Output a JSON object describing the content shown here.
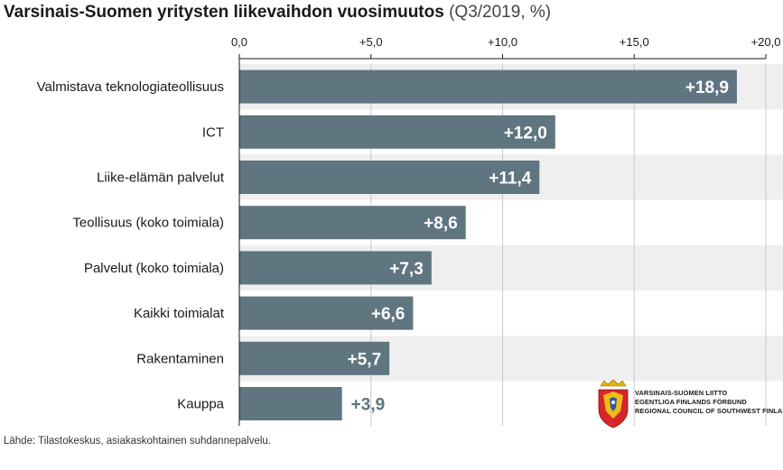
{
  "title": "Varsinais-Suomen yritysten liikevaihdon vuosimuutos",
  "subtitle": "(Q3/2019, %)",
  "source": "Lähde: Tilastokeskus, asiakaskohtainen suhdannepalvelu.",
  "logo": {
    "lines": [
      "VARSINAIS-SUOMEN LIITTO",
      "EGENTLIGA FINLANDS FÖRBUND",
      "REGIONAL COUNCIL OF SOUTHWEST FINLAND"
    ]
  },
  "colors": {
    "bar": "#5f7580",
    "value_label": "#5f7580",
    "value_label_inside": "#ffffff",
    "band": "#efefef",
    "grid": "#c8c8c8",
    "axis": "#1a1a1a"
  },
  "chart_data": {
    "type": "bar",
    "orientation": "horizontal",
    "categories": [
      "Valmistava teknologiateollisuus",
      "ICT",
      "Liike-elämän palvelut",
      "Teollisuus (koko toimiala)",
      "Palvelut (koko toimiala)",
      "Kaikki toimialat",
      "Rakentaminen",
      "Kauppa"
    ],
    "values": [
      18.9,
      12.0,
      11.4,
      8.6,
      7.3,
      6.6,
      5.7,
      3.9
    ],
    "value_labels": [
      "+18,9",
      "+12,0",
      "+11,4",
      "+8,6",
      "+7,3",
      "+6,6",
      "+5,7",
      "+3,9"
    ],
    "xlim": [
      0,
      20
    ],
    "ticks": [
      0,
      5,
      10,
      15,
      20
    ],
    "tick_labels": [
      "0,0",
      "+5,0",
      "+10,0",
      "+15,0",
      "+20,0"
    ],
    "axis_position": "top",
    "grid": true
  }
}
